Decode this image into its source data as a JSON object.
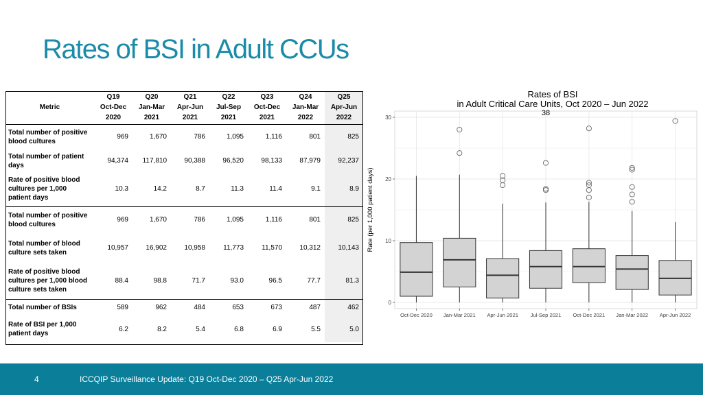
{
  "slide": {
    "title": "Rates of BSI in Adult CCUs"
  },
  "table": {
    "metric_header": "Metric",
    "quarters": [
      {
        "q": "Q19",
        "period": "Oct-Dec",
        "year": "2020"
      },
      {
        "q": "Q20",
        "period": "Jan-Mar",
        "year": "2021"
      },
      {
        "q": "Q21",
        "period": "Apr-Jun",
        "year": "2021"
      },
      {
        "q": "Q22",
        "period": "Jul-Sep",
        "year": "2021"
      },
      {
        "q": "Q23",
        "period": "Oct-Dec",
        "year": "2021"
      },
      {
        "q": "Q24",
        "period": "Jan-Mar",
        "year": "2022"
      },
      {
        "q": "Q25",
        "period": "Apr-Jun",
        "year": "2022"
      }
    ],
    "rows": [
      {
        "lines": [
          "Total number of positive",
          "blood cultures"
        ],
        "values": [
          "969",
          "1,670",
          "786",
          "1,095",
          "1,116",
          "801",
          "825"
        ]
      },
      {
        "lines": [
          "Total number of patient",
          "days"
        ],
        "values": [
          "94,374",
          "117,810",
          "90,388",
          "96,520",
          "98,133",
          "87,979",
          "92,237"
        ]
      },
      {
        "lines": [
          "Rate of positive blood",
          "cultures per 1,000",
          "patient days"
        ],
        "values": [
          "10.3",
          "14.2",
          "8.7",
          "11.3",
          "11.4",
          "9.1",
          "8.9"
        ]
      },
      {
        "lines": [
          "Total number of positive",
          "blood cultures"
        ],
        "values": [
          "969",
          "1,670",
          "786",
          "1,095",
          "1,116",
          "801",
          "825"
        ]
      },
      {
        "lines": [
          "Total number of blood",
          "culture sets taken"
        ],
        "values": [
          "10,957",
          "16,902",
          "10,958",
          "11,773",
          "11,570",
          "10,312",
          "10,143"
        ]
      },
      {
        "lines": [
          "Rate of positive blood",
          "cultures per 1,000 blood",
          "culture sets taken"
        ],
        "values": [
          "88.4",
          "98.8",
          "71.7",
          "93.0",
          "96.5",
          "77.7",
          "81.3"
        ]
      },
      {
        "lines": [
          "Total number of BSIs"
        ],
        "values": [
          "589",
          "962",
          "484",
          "653",
          "673",
          "487",
          "462"
        ]
      },
      {
        "lines": [
          "Rate of BSI per 1,000",
          "patient days"
        ],
        "values": [
          "6.2",
          "8.2",
          "5.4",
          "6.8",
          "6.9",
          "5.5",
          "5.0"
        ]
      }
    ]
  },
  "chart_data": {
    "type": "box",
    "title": "Rates of BSI",
    "subtitle": "in Adult Critical Care Units, Oct 2020 – Jun 2022",
    "xlabel": "",
    "ylabel": "Rate (per 1,000 patient days)",
    "ylim": [
      -1,
      31
    ],
    "yticks": [
      0,
      10,
      20,
      30
    ],
    "grid": true,
    "annotation": {
      "text": "38",
      "x_index": 3.5,
      "y": 30.8
    },
    "categories": [
      "Oct-Dec 2020",
      "Jan-Mar 2021",
      "Apr-Jun 2021",
      "Jul-Sep 2021",
      "Oct-Dec 2021",
      "Jan-Mar 2022",
      "Apr-Jun 2022"
    ],
    "boxes": [
      {
        "min": 0,
        "q1": 1.0,
        "median": 4.9,
        "q3": 9.7,
        "max": 20.5,
        "outliers": []
      },
      {
        "min": 0,
        "q1": 2.5,
        "median": 6.9,
        "q3": 10.4,
        "max": 20.7,
        "outliers": [
          28.0,
          24.2
        ]
      },
      {
        "min": 0,
        "q1": 0.7,
        "median": 4.4,
        "q3": 7.1,
        "max": 16.0,
        "outliers": [
          20.5,
          19.8,
          19.0
        ]
      },
      {
        "min": 0,
        "q1": 2.3,
        "median": 5.8,
        "q3": 8.4,
        "max": 16.2,
        "outliers": [
          22.6,
          18.4,
          18.2
        ]
      },
      {
        "min": 0,
        "q1": 3.2,
        "median": 5.8,
        "q3": 8.7,
        "max": 16.3,
        "outliers": [
          28.2,
          19.4,
          19.0,
          18.2,
          17.0
        ]
      },
      {
        "min": 0,
        "q1": 2.1,
        "median": 5.4,
        "q3": 7.6,
        "max": 14.8,
        "outliers": [
          21.8,
          21.5,
          18.7,
          17.5,
          16.3
        ]
      },
      {
        "min": 0,
        "q1": 1.2,
        "median": 3.9,
        "q3": 6.8,
        "max": 13.0,
        "outliers": [
          29.4
        ]
      }
    ],
    "colors": {
      "box_fill": "#d3d3d3",
      "panel": "#ffffff",
      "grid": "#e8e8e8"
    }
  },
  "footer": {
    "page_number": "4",
    "text": "ICCQIP Surveillance Update: Q19 Oct-Dec 2020 – Q25 Apr-Jun 2022"
  }
}
